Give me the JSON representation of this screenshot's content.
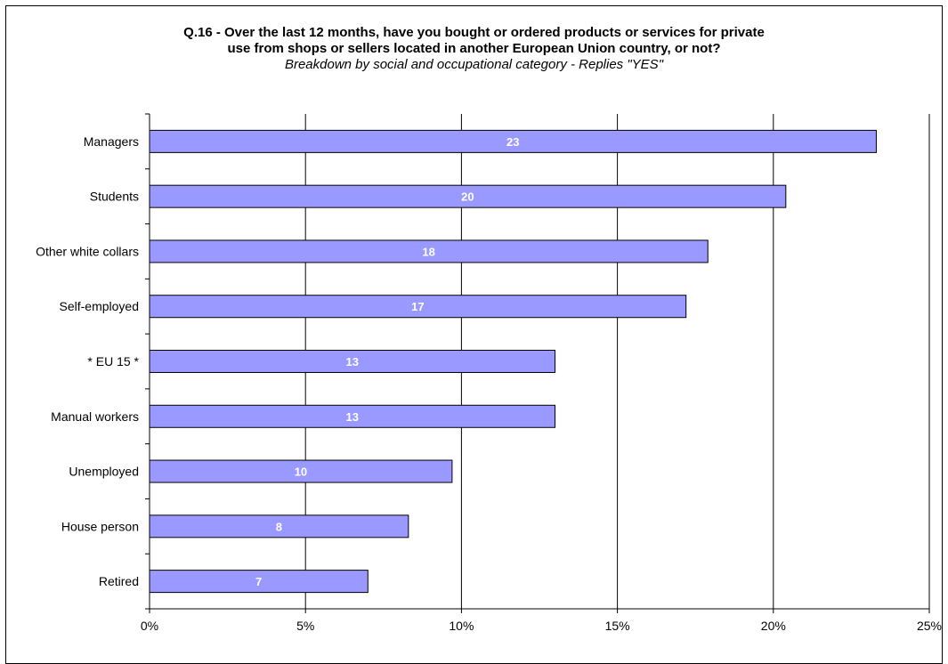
{
  "chart_data": {
    "type": "bar",
    "orientation": "horizontal",
    "title_line1": "Q.16 - Over the last 12 months, have you bought or ordered products or services for private",
    "title_line2": "use from shops or sellers located in another European Union country, or not?",
    "subtitle": "Breakdown by social and occupational category - Replies \"YES\"",
    "categories": [
      "Managers",
      "Students",
      "Other white collars",
      "Self-employed",
      "* EU 15 *",
      "Manual workers",
      "Unemployed",
      "House person",
      "Retired"
    ],
    "values": [
      23.3,
      20.4,
      17.9,
      17.2,
      13.0,
      13.0,
      9.7,
      8.3,
      7.0
    ],
    "data_labels": [
      "23",
      "20",
      "18",
      "17",
      "13",
      "13",
      "10",
      "8",
      "7"
    ],
    "xlim": [
      0,
      25
    ],
    "x_ticks": [
      0,
      5,
      10,
      15,
      20,
      25
    ],
    "x_tick_labels": [
      "0%",
      "5%",
      "10%",
      "15%",
      "20%",
      "25%"
    ],
    "grid": "vertical",
    "bar_color": "#9999ff",
    "legend": "none"
  }
}
